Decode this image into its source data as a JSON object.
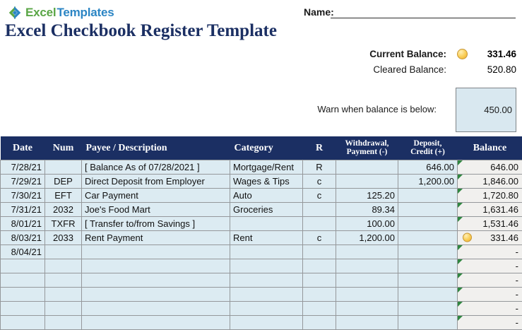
{
  "brand": {
    "word1": "Excel",
    "word2": "Templates"
  },
  "name_field": {
    "label": "Name:",
    "value": ""
  },
  "page_title": "Excel Checkbook Register Template",
  "summary": {
    "current_balance_label": "Current Balance:",
    "current_balance_value": "331.46",
    "cleared_balance_label": "Cleared Balance:",
    "cleared_balance_value": "520.80",
    "warn_label": "Warn when balance is below:",
    "warn_value": "450.00"
  },
  "table": {
    "headers": [
      "Date",
      "Num",
      "Payee / Description",
      "Category",
      "R",
      "Withdrawal,\nPayment (-)",
      "Deposit,\nCredit (+)",
      "Balance"
    ],
    "col_names": [
      "date",
      "num",
      "payee",
      "category",
      "r",
      "withdrawal",
      "deposit",
      "balance"
    ],
    "rows": [
      {
        "cells": [
          "7/28/21",
          "",
          "[ Balance As of 07/28/2021 ]",
          "Mortgage/Rent",
          "R",
          "",
          "646.00",
          "646.00"
        ],
        "marker": "triangle"
      },
      {
        "cells": [
          "7/29/21",
          "DEP",
          "Direct Deposit from Employer",
          "Wages & Tips",
          "c",
          "",
          "1,200.00",
          "1,846.00"
        ],
        "marker": "triangle"
      },
      {
        "cells": [
          "7/30/21",
          "EFT",
          "Car Payment",
          "Auto",
          "c",
          "125.20",
          "",
          "1,720.80"
        ],
        "marker": "triangle"
      },
      {
        "cells": [
          "7/31/21",
          "2032",
          "Joe's Food Mart",
          "Groceries",
          "",
          "89.34",
          "",
          "1,631.46"
        ],
        "marker": "triangle"
      },
      {
        "cells": [
          "8/01/21",
          "TXFR",
          "[ Transfer to/from Savings ]",
          "",
          "",
          "100.00",
          "",
          "1,531.46"
        ],
        "marker": "triangle"
      },
      {
        "cells": [
          "8/03/21",
          "2033",
          "Rent Payment",
          "Rent",
          "c",
          "1,200.00",
          "",
          "331.46"
        ],
        "marker": "circle"
      },
      {
        "cells": [
          "8/04/21",
          "",
          "",
          "",
          "",
          "",
          "",
          "-"
        ],
        "marker": "triangle"
      },
      {
        "cells": [
          "",
          "",
          "",
          "",
          "",
          "",
          "",
          "-"
        ],
        "marker": "triangle"
      },
      {
        "cells": [
          "",
          "",
          "",
          "",
          "",
          "",
          "",
          "-"
        ],
        "marker": "triangle"
      },
      {
        "cells": [
          "",
          "",
          "",
          "",
          "",
          "",
          "",
          "-"
        ],
        "marker": "triangle"
      },
      {
        "cells": [
          "",
          "",
          "",
          "",
          "",
          "",
          "",
          "-"
        ],
        "marker": "triangle"
      },
      {
        "cells": [
          "",
          "",
          "",
          "",
          "",
          "",
          "",
          "-"
        ],
        "marker": "triangle"
      }
    ]
  },
  "colors": {
    "header_navy": "#1b2f63",
    "row_blue": "#dcebf2",
    "balance_gray": "#f1f0ee",
    "grid_gray": "#95989b",
    "indicator_gold": "#f9cd55",
    "error_green": "#2f8640",
    "logo_green": "#5aa646",
    "logo_blue": "#2b85c4"
  }
}
